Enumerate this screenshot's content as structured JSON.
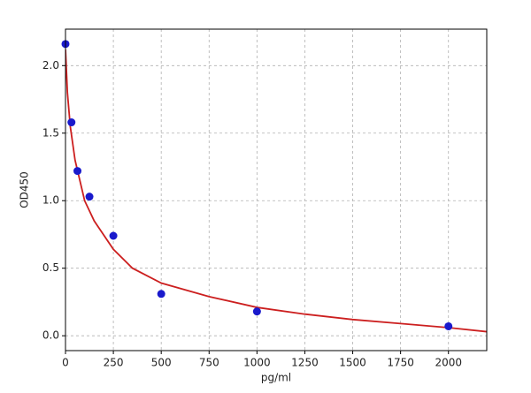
{
  "chart_data": {
    "type": "scatter",
    "xlabel": "pg/ml",
    "ylabel": "OD450",
    "xlim": [
      0,
      2200
    ],
    "ylim": [
      -0.11,
      2.27
    ],
    "xticks": [
      0,
      250,
      500,
      750,
      1000,
      1250,
      1500,
      1750,
      2000
    ],
    "yticks": [
      {
        "value": 0,
        "label": "0.0"
      },
      0.5,
      {
        "value": 1,
        "label": "1.0"
      },
      1.5,
      {
        "value": 2,
        "label": "2.0"
      }
    ],
    "grid": true,
    "series": [
      {
        "type": "scatter",
        "color": "#1a1acc",
        "x": [
          0,
          31.25,
          62.5,
          125,
          250,
          500,
          1000,
          2000
        ],
        "values": [
          2.16,
          1.58,
          1.22,
          1.03,
          0.74,
          0.31,
          0.18,
          0.07
        ]
      },
      {
        "type": "line",
        "color": "#cc1f1f",
        "x": [
          0,
          10,
          25,
          50,
          100,
          150,
          250,
          350,
          500,
          750,
          1000,
          1250,
          1500,
          1750,
          2000,
          2200
        ],
        "values": [
          2.12,
          1.8,
          1.55,
          1.3,
          1.0,
          0.85,
          0.64,
          0.5,
          0.39,
          0.29,
          0.21,
          0.16,
          0.12,
          0.09,
          0.06,
          0.03
        ]
      }
    ]
  }
}
